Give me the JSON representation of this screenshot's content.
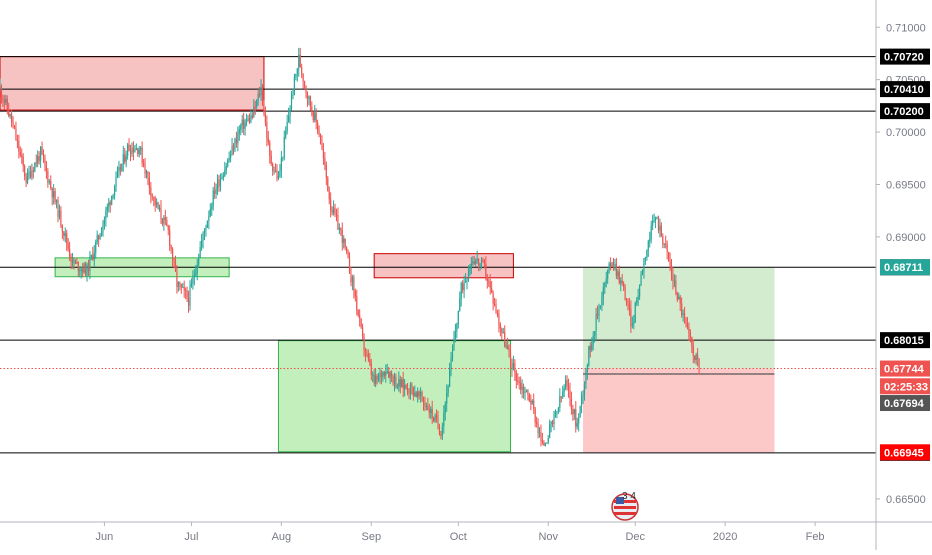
{
  "chart_data": {
    "type": "candlestick",
    "title": "",
    "x_axis": {
      "tick_labels": [
        "Jun",
        "Jul",
        "Aug",
        "Sep",
        "Oct",
        "Nov",
        "Dec",
        "2020",
        "Feb"
      ],
      "range": [
        "2019-04-26",
        "2020-02-22"
      ]
    },
    "y_axis": {
      "range": [
        0.6628,
        0.7126
      ],
      "tick_labels": [
        "0.71000",
        "0.70500",
        "0.70000",
        "0.69500",
        "0.69000",
        "0.66500"
      ]
    },
    "horizontal_lines": [
      {
        "label": "0.70720",
        "value": 0.7072,
        "color": "#000000",
        "badge": "#000000"
      },
      {
        "label": "0.70410",
        "value": 0.7041,
        "color": "#000000",
        "badge": "#000000"
      },
      {
        "label": "0.70200",
        "value": 0.702,
        "color": "#000000",
        "badge": "#000000"
      },
      {
        "label": "0.68710",
        "value": 0.6871,
        "color": "#000000",
        "badge": "#000000"
      },
      {
        "label": "0.68015",
        "value": 0.68015,
        "color": "#000000",
        "badge": "#000000"
      },
      {
        "label": "0.66940",
        "value": 0.6694,
        "color": "#000000",
        "badge": "#000000"
      }
    ],
    "price_badges": [
      {
        "label": "0.68711",
        "value": 0.68711,
        "color": "#26a69a"
      },
      {
        "label": "0.67744",
        "value": 0.67744,
        "color": "#ef5350"
      },
      {
        "label": "02:25:33",
        "value": 0.67575,
        "color": "#ef5350"
      },
      {
        "label": "0.67694",
        "value": 0.67415,
        "color": "#555555"
      },
      {
        "label": "0.66945",
        "value": 0.66945,
        "color": "#ff0000"
      }
    ],
    "current_price": 0.67744,
    "zones": [
      {
        "kind": "resistance",
        "from": "2019-04-26",
        "to": "2019-07-26",
        "top": 0.7072,
        "bottom": 0.7021,
        "fill": "#f5b7b7",
        "stroke": "#cc0000"
      },
      {
        "kind": "support",
        "from": "2019-05-15",
        "to": "2019-07-14",
        "top": 0.688,
        "bottom": 0.6862,
        "fill": "#b9ecb0",
        "stroke": "#33b44a"
      },
      {
        "kind": "resistance",
        "from": "2019-09-02",
        "to": "2019-10-20",
        "top": 0.6884,
        "bottom": 0.6861,
        "fill": "#f5b7b7",
        "stroke": "#cc0000"
      },
      {
        "kind": "support",
        "from": "2019-07-31",
        "to": "2019-10-19",
        "top": 0.6801,
        "bottom": 0.6695,
        "fill": "#b9ecb0",
        "stroke": "#33b44a"
      }
    ],
    "position": {
      "kind": "long",
      "from": "2019-11-13",
      "to": "2020-01-18",
      "entry": 0.6774,
      "target": 0.6871,
      "stop": 0.66945,
      "profit_fill": "#d3ebce",
      "loss_fill": "#fcc8c8"
    },
    "ohlc_path": [
      [
        "2019-04-26",
        0.7042
      ],
      [
        "2019-04-30",
        0.701
      ],
      [
        "2019-05-05",
        0.6955
      ],
      [
        "2019-05-10",
        0.698
      ],
      [
        "2019-05-16",
        0.6925
      ],
      [
        "2019-05-21",
        0.6875
      ],
      [
        "2019-05-26",
        0.6868
      ],
      [
        "2019-05-30",
        0.69
      ],
      [
        "2019-06-04",
        0.6945
      ],
      [
        "2019-06-09",
        0.6985
      ],
      [
        "2019-06-13",
        0.6985
      ],
      [
        "2019-06-18",
        0.6935
      ],
      [
        "2019-06-23",
        0.6905
      ],
      [
        "2019-06-26",
        0.6855
      ],
      [
        "2019-06-30",
        0.684
      ],
      [
        "2019-07-04",
        0.689
      ],
      [
        "2019-07-09",
        0.6945
      ],
      [
        "2019-07-14",
        0.6975
      ],
      [
        "2019-07-18",
        0.7005
      ],
      [
        "2019-07-22",
        0.7015
      ],
      [
        "2019-07-25",
        0.7042
      ],
      [
        "2019-07-28",
        0.6975
      ],
      [
        "2019-07-31",
        0.6955
      ],
      [
        "2019-08-04",
        0.7025
      ],
      [
        "2019-08-07",
        0.707
      ],
      [
        "2019-08-10",
        0.7035
      ],
      [
        "2019-08-14",
        0.7
      ],
      [
        "2019-08-18",
        0.693
      ],
      [
        "2019-08-22",
        0.69
      ],
      [
        "2019-08-26",
        0.685
      ],
      [
        "2019-08-29",
        0.68
      ],
      [
        "2019-09-02",
        0.676
      ],
      [
        "2019-09-06",
        0.6775
      ],
      [
        "2019-09-10",
        0.676
      ],
      [
        "2019-09-15",
        0.6755
      ],
      [
        "2019-09-20",
        0.674
      ],
      [
        "2019-09-25",
        0.6715
      ],
      [
        "2019-09-28",
        0.677
      ],
      [
        "2019-10-02",
        0.685
      ],
      [
        "2019-10-06",
        0.688
      ],
      [
        "2019-10-10",
        0.687
      ],
      [
        "2019-10-14",
        0.683
      ],
      [
        "2019-10-18",
        0.679
      ],
      [
        "2019-10-22",
        0.676
      ],
      [
        "2019-10-26",
        0.6745
      ],
      [
        "2019-10-30",
        0.67
      ],
      [
        "2019-11-03",
        0.6725
      ],
      [
        "2019-11-07",
        0.676
      ],
      [
        "2019-11-11",
        0.672
      ],
      [
        "2019-11-15",
        0.679
      ],
      [
        "2019-11-19",
        0.684
      ],
      [
        "2019-11-23",
        0.688
      ],
      [
        "2019-11-27",
        0.685
      ],
      [
        "2019-11-30",
        0.6815
      ],
      [
        "2019-12-04",
        0.688
      ],
      [
        "2019-12-08",
        0.692
      ],
      [
        "2019-12-11",
        0.6895
      ],
      [
        "2019-12-14",
        0.686
      ],
      [
        "2019-12-17",
        0.683
      ],
      [
        "2019-12-20",
        0.68
      ],
      [
        "2019-12-23",
        0.6775
      ]
    ]
  },
  "flag_badge": {
    "numbers": "3 4",
    "icon": "us-flag-events-icon"
  },
  "colors": {
    "up": "#26a69a",
    "down": "#ef5350",
    "axis": "#b2b5be",
    "tick": "#787b86",
    "bg": "#ffffff"
  }
}
